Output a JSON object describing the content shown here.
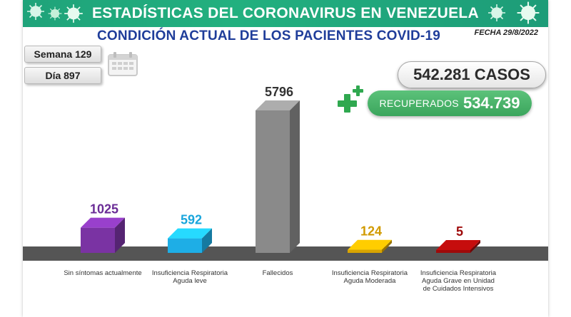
{
  "header": {
    "title": "ESTADÍSTICAS DEL CORONAVIRUS EN VENEZUELA",
    "subtitle": "CONDICIÓN ACTUAL DE LOS PACIENTES COVID-19",
    "date": "FECHA 29/8/2022"
  },
  "counters": {
    "week": "Semana 129",
    "day": "Día 897"
  },
  "summary": {
    "cases": "542.281 CASOS",
    "recovered_label": "RECUPERADOS",
    "recovered_value": "534.739"
  },
  "colors": {
    "banner": "#22b07f",
    "subtitle": "#1f3d9a",
    "floor": "#555555"
  },
  "icons": [
    "virus-icon",
    "calendar-icon",
    "plus-icon"
  ],
  "chart_data": {
    "type": "bar",
    "categories": [
      "Sin síntomas actualmente",
      "Insuficiencia Respiratoria Aguda leve",
      "Fallecidos",
      "Insuficiencia Respiratoria Aguda Moderada",
      "Insuficiencia Respiratoria Aguda Grave en Unidad de Cuidados Intensivos"
    ],
    "values": [
      1025,
      592,
      5796,
      124,
      5
    ],
    "value_labels": [
      "1025",
      "592",
      "5796",
      "124",
      "5"
    ],
    "colors": [
      "#7a33a3",
      "#1eaee6",
      "#8a8a8a",
      "#d9a400",
      "#9e0a0a"
    ],
    "label_colors": [
      "#6a2c96",
      "#1aa6dc",
      "#333333",
      "#d19a00",
      "#9e0a0a"
    ],
    "title": "",
    "xlabel": "",
    "ylabel": "",
    "ylim": [
      0,
      5796
    ]
  }
}
